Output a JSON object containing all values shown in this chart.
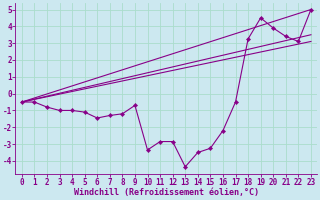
{
  "xlabel": "Windchill (Refroidissement éolien,°C)",
  "bg_color": "#cce8f0",
  "line_color": "#880088",
  "grid_color": "#aaddcc",
  "xlim": [
    -0.5,
    23.5
  ],
  "ylim": [
    -4.8,
    5.4
  ],
  "xticks": [
    0,
    1,
    2,
    3,
    4,
    5,
    6,
    7,
    8,
    9,
    10,
    11,
    12,
    13,
    14,
    15,
    16,
    17,
    18,
    19,
    20,
    21,
    22,
    23
  ],
  "yticks": [
    -4,
    -3,
    -2,
    -1,
    0,
    1,
    2,
    3,
    4,
    5
  ],
  "line1_x": [
    0,
    1,
    2,
    3,
    4,
    5,
    6,
    7,
    8,
    9,
    10,
    11,
    12,
    13,
    14,
    15,
    16,
    17,
    18,
    19,
    20,
    21,
    22,
    23
  ],
  "line1_y": [
    -0.5,
    -0.5,
    -0.8,
    -1.0,
    -1.0,
    -1.1,
    -1.45,
    -1.3,
    -1.2,
    -0.7,
    -3.35,
    -2.85,
    -2.85,
    -4.35,
    -3.5,
    -3.25,
    -2.2,
    -0.5,
    3.25,
    4.5,
    3.9,
    3.4,
    3.1,
    5.0
  ],
  "line2_x": [
    0,
    23
  ],
  "line2_y": [
    -0.5,
    5.0
  ],
  "line3_x": [
    0,
    23
  ],
  "line3_y": [
    -0.5,
    3.5
  ],
  "line4_x": [
    0,
    23
  ],
  "line4_y": [
    -0.5,
    3.1
  ],
  "marker": "D",
  "markersize": 2.2,
  "linewidth": 0.8,
  "tick_fontsize": 5.5,
  "xlabel_fontsize": 6.0
}
